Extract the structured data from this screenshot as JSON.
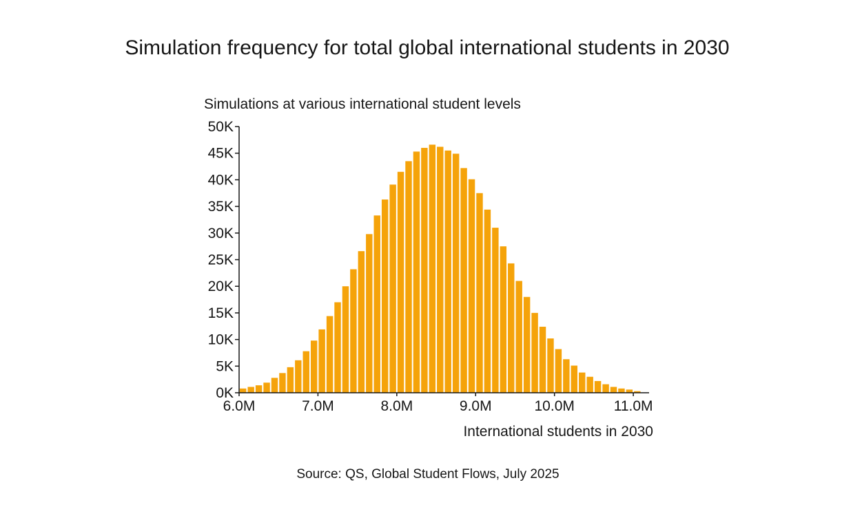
{
  "chart_data": {
    "type": "bar",
    "title": "Simulation frequency for total global international students in 2030",
    "ylabel": "Simulations at various international student levels",
    "xlabel": "International students in 2030",
    "source": "Source: QS, Global Student Flows, July 2025",
    "bar_color": "#F5A30A",
    "axis_color": "#151515",
    "ylim": [
      0,
      50000
    ],
    "xlim": [
      6.0,
      11.2
    ],
    "yticks": [
      {
        "value": 0,
        "label": "0K"
      },
      {
        "value": 5000,
        "label": "5K"
      },
      {
        "value": 10000,
        "label": "10K"
      },
      {
        "value": 15000,
        "label": "15K"
      },
      {
        "value": 20000,
        "label": "20K"
      },
      {
        "value": 25000,
        "label": "25K"
      },
      {
        "value": 30000,
        "label": "30K"
      },
      {
        "value": 35000,
        "label": "35K"
      },
      {
        "value": 40000,
        "label": "40K"
      },
      {
        "value": 45000,
        "label": "45K"
      },
      {
        "value": 50000,
        "label": "50K"
      }
    ],
    "xticks": [
      {
        "value": 6.0,
        "label": "6.0M"
      },
      {
        "value": 7.0,
        "label": "7.0M"
      },
      {
        "value": 8.0,
        "label": "8.0M"
      },
      {
        "value": 9.0,
        "label": "9.0M"
      },
      {
        "value": 10.0,
        "label": "10.0M"
      },
      {
        "value": 11.0,
        "label": "11.0M"
      }
    ],
    "bin_start": 6.0,
    "bin_width": 0.1,
    "values": [
      800,
      1100,
      1400,
      1900,
      2800,
      3700,
      4800,
      6100,
      7800,
      9800,
      11900,
      14400,
      17000,
      20000,
      23200,
      26600,
      29800,
      33300,
      36300,
      39100,
      41500,
      43500,
      45300,
      46000,
      46600,
      46200,
      45500,
      44900,
      42200,
      40100,
      37500,
      34400,
      31000,
      27500,
      24300,
      21000,
      18000,
      15000,
      12400,
      10200,
      8200,
      6300,
      5100,
      3800,
      3000,
      2200,
      1600,
      1100,
      800,
      600,
      300
    ]
  }
}
